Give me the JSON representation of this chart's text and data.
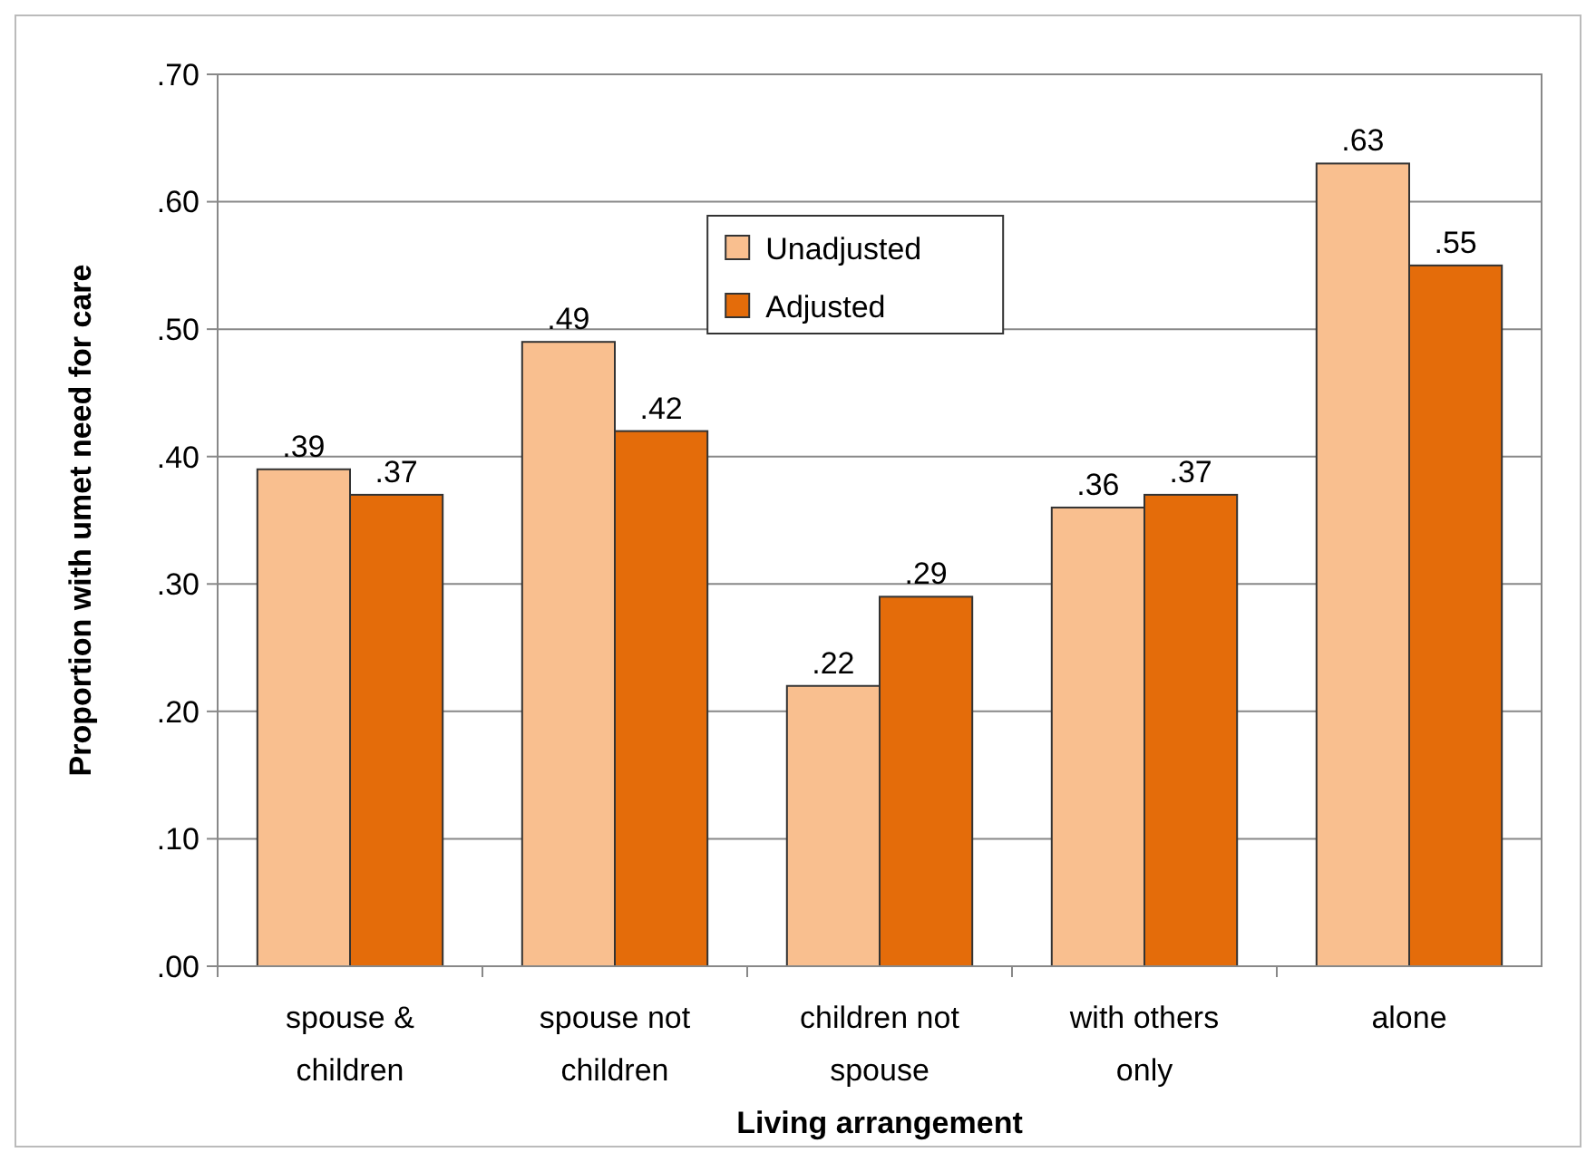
{
  "chart_data": {
    "type": "bar",
    "xlabel": "Living arrangement",
    "ylabel": "Proportion with umet need for care",
    "categories": [
      "spouse & children",
      "spouse not children",
      "children not spouse",
      "with others only",
      "alone"
    ],
    "series": [
      {
        "name": "Unadjusted",
        "color": "#f9bf8f",
        "values": [
          0.39,
          0.49,
          0.22,
          0.36,
          0.63
        ],
        "value_labels": [
          ".39",
          ".49",
          ".22",
          ".36",
          ".63"
        ]
      },
      {
        "name": "Adjusted",
        "color": "#e46c0a",
        "values": [
          0.37,
          0.42,
          0.29,
          0.37,
          0.55
        ],
        "value_labels": [
          ".37",
          ".42",
          ".29",
          ".37",
          ".55"
        ]
      }
    ],
    "ylim": [
      0,
      0.7
    ],
    "yticks": [
      {
        "value": 0,
        "label": ".00"
      },
      {
        "value": 0.1,
        "label": ".10"
      },
      {
        "value": 0.2,
        "label": ".20"
      },
      {
        "value": 0.3,
        "label": ".30"
      },
      {
        "value": 0.4,
        "label": ".40"
      },
      {
        "value": 0.5,
        "label": ".50"
      },
      {
        "value": 0.6,
        "label": ".60"
      },
      {
        "value": 0.7,
        "label": ".70"
      }
    ],
    "grid": "y",
    "legend": "top"
  }
}
